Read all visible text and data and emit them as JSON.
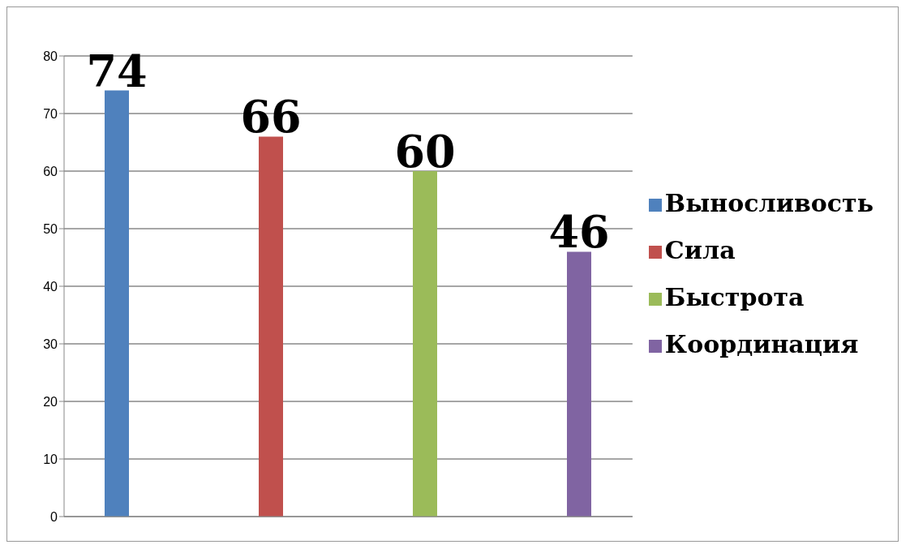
{
  "chart_data": {
    "type": "bar",
    "categories": [
      null
    ],
    "series": [
      {
        "name": "Выносливость",
        "color": "#4f81bd",
        "values": [
          74
        ]
      },
      {
        "name": "Сила",
        "color": "#c0504d",
        "values": [
          66
        ]
      },
      {
        "name": "Быстрота",
        "color": "#9bbb59",
        "values": [
          60
        ]
      },
      {
        "name": "Координация",
        "color": "#8064a2",
        "values": [
          46
        ]
      }
    ],
    "ylim": [
      0,
      80
    ],
    "yticks": [
      0,
      10,
      20,
      30,
      40,
      50,
      60,
      70,
      80
    ],
    "grid": "y",
    "legend": "right",
    "data_labels": true
  }
}
